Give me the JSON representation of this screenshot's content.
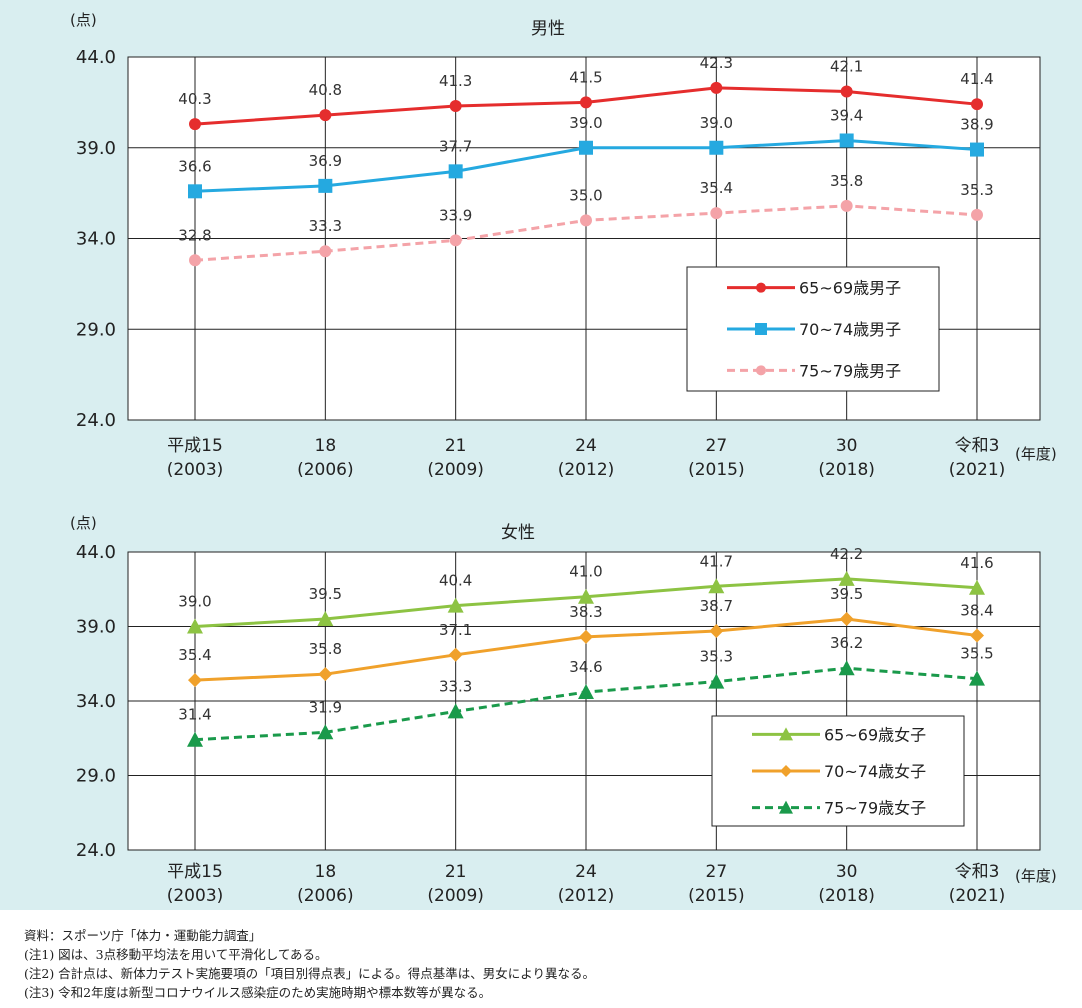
{
  "chart_data": [
    {
      "type": "line",
      "title": "男性",
      "unit": "(点)",
      "x_unit": "(年度)",
      "categories": [
        [
          "平成15",
          "(2003)"
        ],
        [
          "18",
          "(2006)"
        ],
        [
          "21",
          "(2009)"
        ],
        [
          "24",
          "(2012)"
        ],
        [
          "27",
          "(2015)"
        ],
        [
          "30",
          "(2018)"
        ],
        [
          "令和3",
          "(2021)"
        ]
      ],
      "ylim": [
        24.0,
        44.0
      ],
      "yticks": [
        "44.0",
        "39.0",
        "34.0",
        "29.0",
        "24.0"
      ],
      "grid": true,
      "legend_position": "lower-right",
      "series": [
        {
          "name": "65~69歳男子",
          "color": "#e52d2d",
          "marker": "circle",
          "dashed": false,
          "values": [
            40.3,
            40.8,
            41.3,
            41.5,
            42.3,
            42.1,
            41.4
          ],
          "labels": [
            "40.3",
            "40.8",
            "41.3",
            "41.5",
            "42.3",
            "42.1",
            "41.4"
          ]
        },
        {
          "name": "70~74歳男子",
          "color": "#25a9e0",
          "marker": "square",
          "dashed": false,
          "values": [
            36.6,
            36.9,
            37.7,
            39.0,
            39.0,
            39.4,
            38.9
          ],
          "labels": [
            "36.6",
            "36.9",
            "37.7",
            "39.0",
            "39.0",
            "39.4",
            "38.9"
          ]
        },
        {
          "name": "75~79歳男子",
          "color": "#f4a3a8",
          "marker": "circle",
          "dashed": true,
          "values": [
            32.8,
            33.3,
            33.9,
            35.0,
            35.4,
            35.8,
            35.3
          ],
          "labels": [
            "32.8",
            "33.3",
            "33.9",
            "35.0",
            "35.4",
            "35.8",
            "35.3"
          ]
        }
      ]
    },
    {
      "type": "line",
      "title": "女性",
      "unit": "(点)",
      "x_unit": "(年度)",
      "categories": [
        [
          "平成15",
          "(2003)"
        ],
        [
          "18",
          "(2006)"
        ],
        [
          "21",
          "(2009)"
        ],
        [
          "24",
          "(2012)"
        ],
        [
          "27",
          "(2015)"
        ],
        [
          "30",
          "(2018)"
        ],
        [
          "令和3",
          "(2021)"
        ]
      ],
      "ylim": [
        24.0,
        44.0
      ],
      "yticks": [
        "44.0",
        "39.0",
        "34.0",
        "29.0",
        "24.0"
      ],
      "grid": true,
      "legend_position": "lower-right",
      "series": [
        {
          "name": "65~69歳女子",
          "color": "#8dc343",
          "marker": "triangle",
          "dashed": false,
          "values": [
            39.0,
            39.5,
            40.4,
            41.0,
            41.7,
            42.2,
            41.6
          ],
          "labels": [
            "39.0",
            "39.5",
            "40.4",
            "41.0",
            "41.7",
            "42.2",
            "41.6"
          ]
        },
        {
          "name": "70~74歳女子",
          "color": "#f0a12b",
          "marker": "diamond",
          "dashed": false,
          "values": [
            35.4,
            35.8,
            37.1,
            38.3,
            38.7,
            39.5,
            38.4
          ],
          "labels": [
            "35.4",
            "35.8",
            "37.1",
            "38.3",
            "38.7",
            "39.5",
            "38.4"
          ]
        },
        {
          "name": "75~79歳女子",
          "color": "#1a9a4b",
          "marker": "triangle",
          "dashed": true,
          "values": [
            31.4,
            31.9,
            33.3,
            34.6,
            35.3,
            36.2,
            35.5
          ],
          "labels": [
            "31.4",
            "31.9",
            "33.3",
            "34.6",
            "35.3",
            "36.2",
            "35.5"
          ]
        }
      ]
    }
  ],
  "notes": [
    "資料：スポーツ庁「体力・運動能力調査」",
    "(注1) 図は、3点移動平均法を用いて平滑化してある。",
    "(注2) 合計点は、新体力テスト実施要項の「項目別得点表」による。得点基準は、男女により異なる。",
    "(注3) 令和2年度は新型コロナウイルス感染症のため実施時期や標本数等が異なる。"
  ]
}
